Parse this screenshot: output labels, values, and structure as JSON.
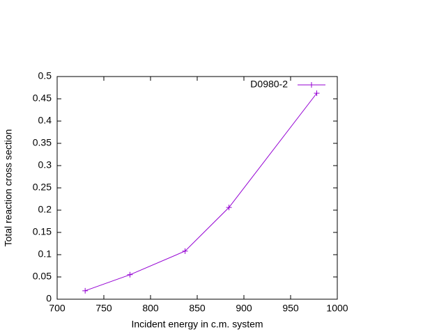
{
  "chart_data": {
    "type": "line",
    "xlabel": "Incident energy in c.m. system",
    "ylabel": "Total reaction cross section",
    "series": [
      {
        "name": "D0980-2",
        "color": "#9400d3",
        "x": [
          730,
          778,
          837,
          884,
          978
        ],
        "values": [
          0.019,
          0.055,
          0.108,
          0.206,
          0.4625
        ]
      }
    ],
    "xlim": [
      700,
      1000
    ],
    "xticks": [
      700,
      750,
      800,
      850,
      900,
      950,
      1000
    ],
    "ylim": [
      0,
      0.5
    ],
    "yticks": [
      0,
      0.05,
      0.1,
      0.15,
      0.2,
      0.25,
      0.3,
      0.35,
      0.4,
      0.45,
      0.5
    ],
    "grid": false,
    "legend": "top-right"
  }
}
